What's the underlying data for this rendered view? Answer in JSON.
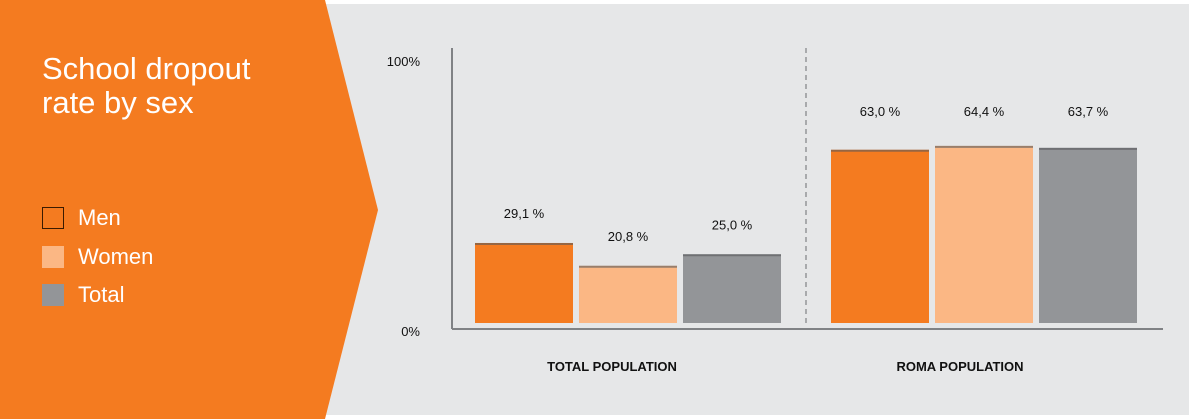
{
  "title_line1": "School dropout",
  "title_line2": "rate by sex",
  "colors": {
    "men": "#f47b20",
    "women": "#fbb784",
    "total": "#939598",
    "panel": "#e6e7e8"
  },
  "legend": [
    {
      "label": "Men",
      "color": "#f47b20"
    },
    {
      "label": "Women",
      "color": "#fbb784"
    },
    {
      "label": "Total",
      "color": "#939598"
    }
  ],
  "chart_data": {
    "type": "bar",
    "categories": [
      "TOTAL POPULATION",
      "ROMA POPULATION"
    ],
    "series": [
      {
        "name": "Men",
        "values": [
          29.1,
          63.0
        ],
        "labels": [
          "29,1 %",
          "63,0 %"
        ]
      },
      {
        "name": "Women",
        "values": [
          20.8,
          64.4
        ],
        "labels": [
          "20,8 %",
          "64,4 %"
        ]
      },
      {
        "name": "Total",
        "values": [
          25.0,
          63.7
        ],
        "labels": [
          "25,0 %",
          "63,7 %"
        ]
      }
    ],
    "ylim": [
      0,
      100
    ],
    "yticks": [
      "0%",
      "100%"
    ],
    "grid": false,
    "legend_position": "left"
  }
}
